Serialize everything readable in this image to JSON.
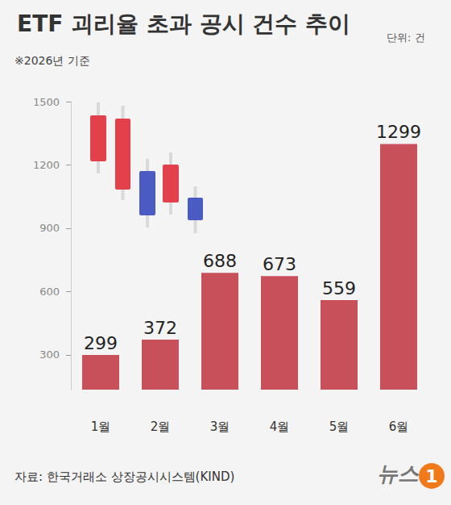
{
  "chart_data": {
    "type": "bar",
    "title": "ETF 괴리율 초과 공시 건수 추이",
    "unit": "단위: 건",
    "note": "※2026년 기준",
    "source": "자료: 한국거래소 상장공시시스템(KIND)",
    "logo": [
      "뉴스",
      "1"
    ],
    "categories": [
      "1월",
      "2월",
      "3월",
      "4월",
      "5월",
      "6월"
    ],
    "values": [
      299,
      372,
      688,
      673,
      559,
      1299
    ],
    "color": "#c8505a",
    "ylim": [
      135,
      1500
    ],
    "yticks": [
      300,
      600,
      900,
      1200,
      1500
    ],
    "grid": false,
    "data_labels": true
  }
}
